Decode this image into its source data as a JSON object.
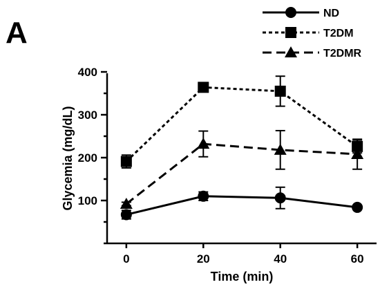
{
  "panel_label": "A",
  "chart_data": {
    "type": "line",
    "title": "",
    "xlabel": "Time (min)",
    "ylabel": "Glycemia (mg/dL)",
    "x": [
      0,
      20,
      40,
      60
    ],
    "xticks": [
      "0",
      "20",
      "40",
      "60"
    ],
    "yticks": [
      "100",
      "200",
      "300",
      "400"
    ],
    "xlim": [
      -5,
      65
    ],
    "ylim": [
      0,
      400
    ],
    "grid": false,
    "legend_position": "top-right",
    "series": [
      {
        "name": "ND",
        "marker": "circle",
        "line_style": "solid",
        "color": "#000000",
        "values": [
          67,
          110,
          106,
          84
        ],
        "errors": [
          10,
          10,
          25,
          4
        ]
      },
      {
        "name": "T2DM",
        "marker": "square",
        "line_style": "dotted",
        "color": "#000000",
        "values": [
          191,
          364,
          355,
          226
        ],
        "errors": [
          15,
          5,
          35,
          15
        ]
      },
      {
        "name": "T2DMR",
        "marker": "triangle",
        "line_style": "dashed",
        "color": "#000000",
        "values": [
          92,
          232,
          218,
          208
        ],
        "errors": [
          4,
          30,
          45,
          35
        ]
      }
    ]
  }
}
